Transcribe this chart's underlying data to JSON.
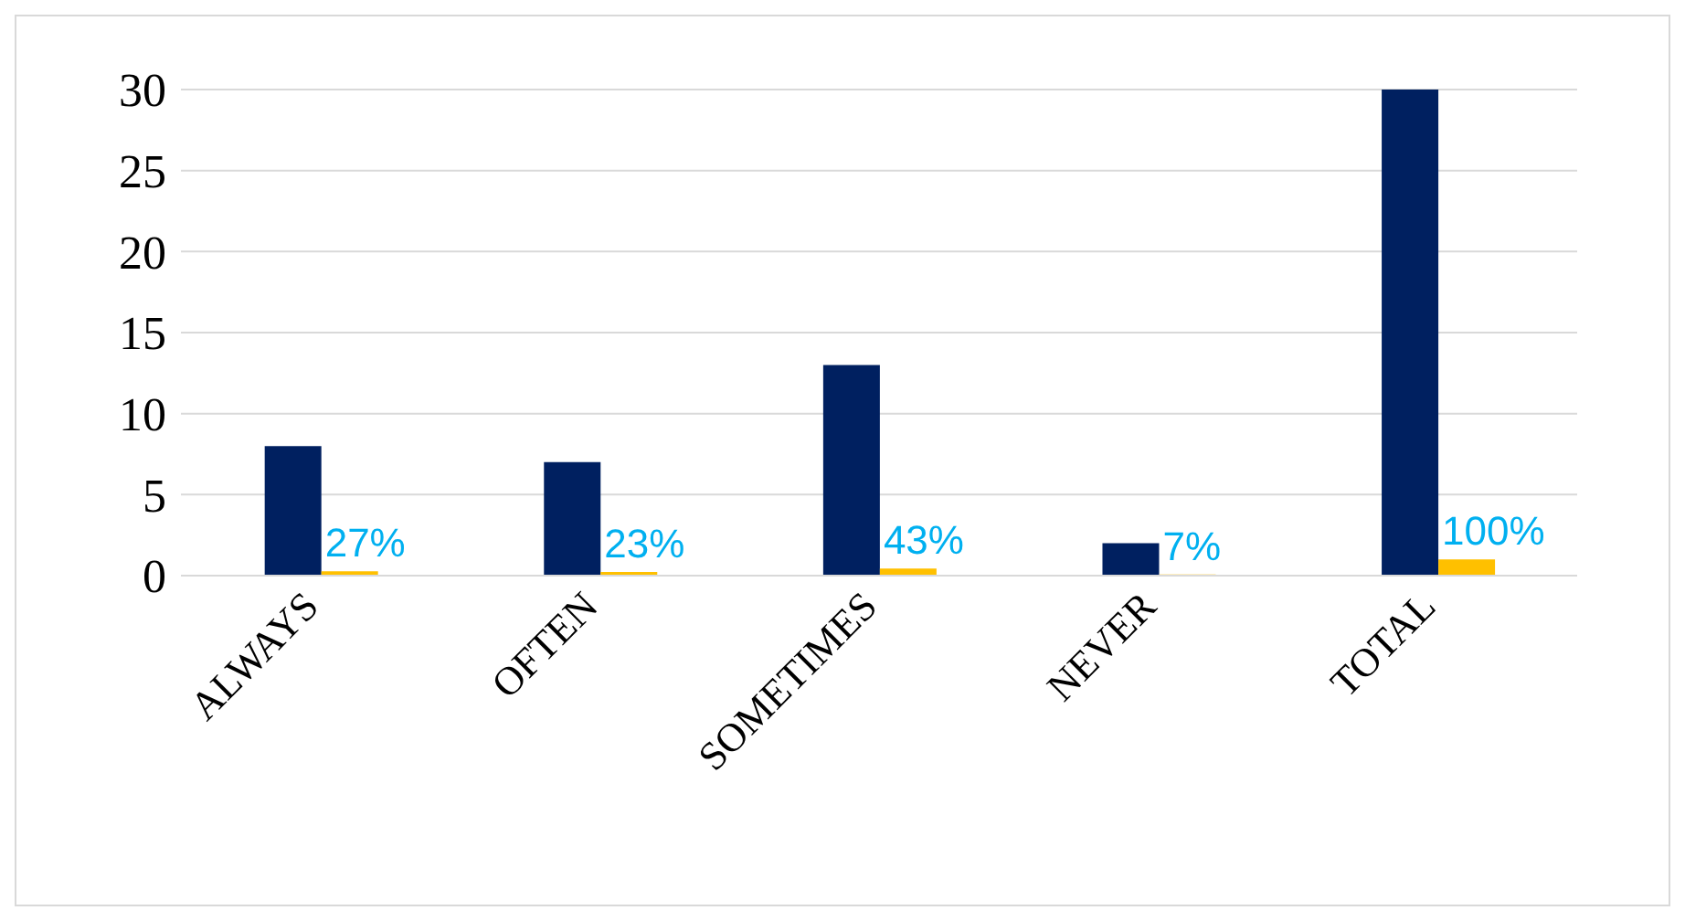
{
  "chart_data": {
    "type": "bar",
    "categories": [
      "ALWAYS",
      "OFTEN",
      "SOMETIMES",
      "NEVER",
      "TOTAL"
    ],
    "series": [
      {
        "color": "#002060",
        "values": [
          8,
          7,
          13,
          2,
          30
        ]
      },
      {
        "color": "#ffc000",
        "values": [
          0.27,
          0.23,
          0.43,
          0.07,
          1
        ],
        "value_labels": [
          "27%",
          "23%",
          "43%",
          "7%",
          "100%"
        ]
      }
    ],
    "ylim": [
      0,
      30
    ],
    "yticks": [
      0,
      5,
      10,
      15,
      20,
      25,
      30
    ],
    "grid": "y"
  }
}
